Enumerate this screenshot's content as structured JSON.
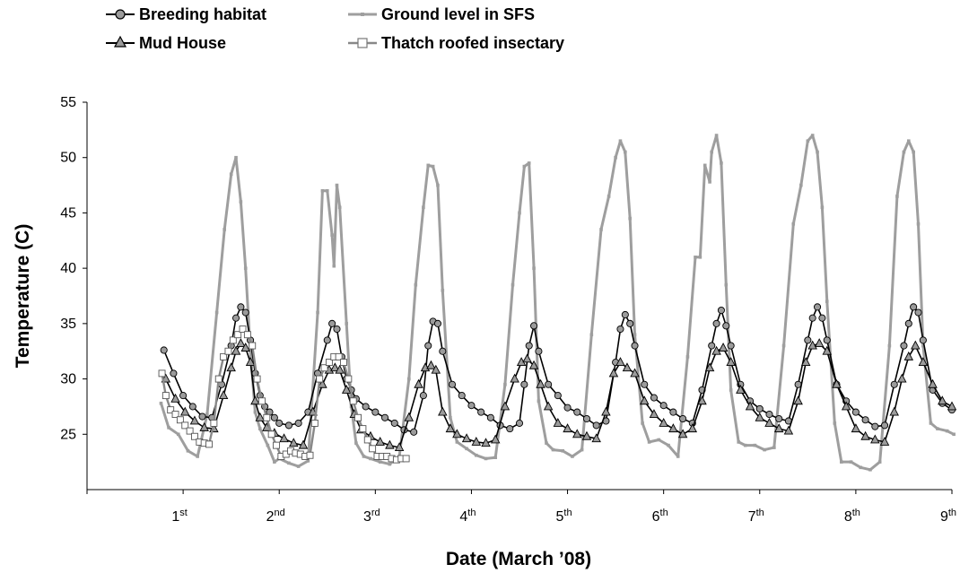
{
  "chart_data": {
    "type": "line",
    "title": "",
    "xlabel": "Date (March ’08)",
    "ylabel": "Temperature (C)",
    "ylim": [
      20,
      55
    ],
    "xlim": [
      0,
      9
    ],
    "yticks": [
      25,
      30,
      35,
      40,
      45,
      50,
      55
    ],
    "xticks": [
      {
        "x": 1,
        "base": "1",
        "sup": "st"
      },
      {
        "x": 2,
        "base": "2",
        "sup": "nd"
      },
      {
        "x": 3,
        "base": "3",
        "sup": "rd"
      },
      {
        "x": 4,
        "base": "4",
        "sup": "th"
      },
      {
        "x": 5,
        "base": "5",
        "sup": "th"
      },
      {
        "x": 6,
        "base": "6",
        "sup": "th"
      },
      {
        "x": 7,
        "base": "7",
        "sup": "th"
      },
      {
        "x": 8,
        "base": "8",
        "sup": "th"
      },
      {
        "x": 9,
        "base": "9",
        "sup": "th"
      }
    ],
    "grid": false,
    "legend_position": "top-left",
    "series": [
      {
        "name": "Ground level in SFS",
        "color": "#9e9e9e",
        "marker": "small-square",
        "x": [
          0.77,
          0.85,
          0.95,
          1.05,
          1.15,
          1.25,
          1.35,
          1.43,
          1.5,
          1.55,
          1.6,
          1.65,
          1.7,
          1.75,
          1.8,
          1.88,
          1.95,
          2.0,
          2.1,
          2.2,
          2.3,
          2.4,
          2.45,
          2.5,
          2.55,
          2.57,
          2.6,
          2.63,
          2.7,
          2.75,
          2.8,
          2.88,
          2.95,
          3.05,
          3.15,
          3.25,
          3.35,
          3.42,
          3.5,
          3.55,
          3.6,
          3.65,
          3.7,
          3.78,
          3.85,
          3.95,
          4.05,
          4.15,
          4.25,
          4.35,
          4.43,
          4.5,
          4.55,
          4.6,
          4.65,
          4.7,
          4.78,
          4.85,
          4.95,
          5.05,
          5.15,
          5.25,
          5.35,
          5.43,
          5.5,
          5.55,
          5.6,
          5.65,
          5.7,
          5.78,
          5.85,
          5.95,
          6.05,
          6.15,
          6.25,
          6.33,
          6.38,
          6.43,
          6.48,
          6.5,
          6.55,
          6.6,
          6.65,
          6.7,
          6.78,
          6.85,
          6.95,
          7.05,
          7.15,
          7.25,
          7.35,
          7.43,
          7.5,
          7.55,
          7.6,
          7.65,
          7.7,
          7.78,
          7.85,
          7.95,
          8.05,
          8.15,
          8.25,
          8.35,
          8.43,
          8.5,
          8.55,
          8.6,
          8.65,
          8.7,
          8.78,
          8.85,
          8.95,
          9.02
        ],
        "values": [
          27.8,
          25.6,
          25.0,
          23.5,
          23.0,
          26.8,
          36.0,
          43.5,
          48.5,
          50.0,
          46.0,
          40.0,
          32.5,
          27.0,
          25.5,
          24.0,
          22.5,
          22.8,
          22.4,
          22.1,
          22.6,
          36.0,
          47.0,
          47.0,
          43.0,
          40.2,
          47.5,
          45.5,
          35.0,
          27.5,
          24.2,
          23.0,
          22.8,
          22.5,
          22.3,
          23.0,
          30.0,
          38.5,
          45.5,
          49.3,
          49.2,
          47.5,
          38.0,
          26.5,
          24.3,
          23.7,
          23.1,
          22.8,
          22.9,
          29.5,
          38.5,
          45.0,
          49.2,
          49.5,
          40.0,
          28.0,
          24.2,
          23.6,
          23.5,
          23.0,
          23.6,
          34.0,
          43.5,
          46.5,
          50.0,
          51.5,
          50.5,
          44.5,
          34.0,
          26.0,
          24.3,
          24.5,
          24.0,
          23.0,
          32.0,
          41.0,
          41.0,
          49.3,
          47.8,
          50.5,
          52.0,
          49.5,
          38.5,
          29.0,
          24.3,
          24.0,
          24.0,
          23.6,
          23.8,
          33.0,
          44.0,
          47.5,
          51.5,
          52.0,
          50.5,
          45.5,
          37.0,
          26.0,
          22.5,
          22.5,
          22.0,
          21.8,
          22.5,
          33.0,
          46.5,
          50.5,
          51.5,
          50.5,
          44.0,
          33.0,
          26.0,
          25.5,
          25.3,
          25.0
        ]
      },
      {
        "name": "Breeding habitat",
        "color": "#000000",
        "marker": "circle",
        "x": [
          0.8,
          0.9,
          1.0,
          1.1,
          1.2,
          1.3,
          1.4,
          1.5,
          1.55,
          1.6,
          1.65,
          1.7,
          1.75,
          1.8,
          1.85,
          1.9,
          1.95,
          2.0,
          2.1,
          2.2,
          2.3,
          2.4,
          2.5,
          2.55,
          2.6,
          2.65,
          2.7,
          2.75,
          2.8,
          2.9,
          3.0,
          3.1,
          3.2,
          3.3,
          3.4,
          3.5,
          3.55,
          3.6,
          3.65,
          3.7,
          3.8,
          3.9,
          4.0,
          4.1,
          4.2,
          4.3,
          4.4,
          4.5,
          4.55,
          4.6,
          4.65,
          4.7,
          4.8,
          4.9,
          5.0,
          5.1,
          5.2,
          5.3,
          5.4,
          5.5,
          5.55,
          5.6,
          5.65,
          5.7,
          5.8,
          5.9,
          6.0,
          6.1,
          6.2,
          6.3,
          6.4,
          6.5,
          6.55,
          6.6,
          6.65,
          6.7,
          6.8,
          6.9,
          7.0,
          7.1,
          7.2,
          7.3,
          7.4,
          7.5,
          7.55,
          7.6,
          7.65,
          7.7,
          7.8,
          7.9,
          8.0,
          8.1,
          8.2,
          8.3,
          8.4,
          8.5,
          8.55,
          8.6,
          8.65,
          8.7,
          8.8,
          8.9,
          9.0
        ],
        "values": [
          32.6,
          30.5,
          28.5,
          27.5,
          26.6,
          26.5,
          29.5,
          33.0,
          35.5,
          36.5,
          36.0,
          33.5,
          30.5,
          28.5,
          27.5,
          27.0,
          26.5,
          26.0,
          25.8,
          26.0,
          27.0,
          30.5,
          33.5,
          35.0,
          34.5,
          32.0,
          30.0,
          29.0,
          28.2,
          27.5,
          27.0,
          26.5,
          26.0,
          25.4,
          25.2,
          28.5,
          33.0,
          35.2,
          35.0,
          32.5,
          29.5,
          28.5,
          27.6,
          27.0,
          26.5,
          25.8,
          25.5,
          26.0,
          29.5,
          33.0,
          34.8,
          32.5,
          29.5,
          28.5,
          27.4,
          27.0,
          26.4,
          25.8,
          26.2,
          31.5,
          34.5,
          35.8,
          35.0,
          33.0,
          29.5,
          28.3,
          27.6,
          27.0,
          26.4,
          26.0,
          29.0,
          33.0,
          35.0,
          36.2,
          34.8,
          33.0,
          29.5,
          28.0,
          27.3,
          26.8,
          26.4,
          26.2,
          29.5,
          33.5,
          35.5,
          36.5,
          35.5,
          33.5,
          29.5,
          28.0,
          27.0,
          26.3,
          25.7,
          25.8,
          29.5,
          33.0,
          35.0,
          36.5,
          36.0,
          33.5,
          29.0,
          27.8,
          27.2
        ]
      },
      {
        "name": "Mud House",
        "color": "#000000",
        "marker": "triangle",
        "x": [
          0.82,
          0.92,
          1.02,
          1.12,
          1.22,
          1.32,
          1.42,
          1.5,
          1.55,
          1.6,
          1.65,
          1.7,
          1.75,
          1.8,
          1.87,
          1.95,
          2.05,
          2.15,
          2.25,
          2.35,
          2.45,
          2.52,
          2.58,
          2.63,
          2.7,
          2.78,
          2.85,
          2.95,
          3.05,
          3.15,
          3.25,
          3.35,
          3.45,
          3.52,
          3.58,
          3.63,
          3.7,
          3.78,
          3.85,
          3.95,
          4.05,
          4.15,
          4.25,
          4.35,
          4.45,
          4.52,
          4.58,
          4.65,
          4.72,
          4.8,
          4.9,
          5.0,
          5.1,
          5.2,
          5.3,
          5.4,
          5.48,
          5.55,
          5.62,
          5.7,
          5.8,
          5.9,
          6.0,
          6.1,
          6.2,
          6.3,
          6.4,
          6.48,
          6.55,
          6.62,
          6.7,
          6.8,
          6.9,
          7.0,
          7.1,
          7.2,
          7.3,
          7.4,
          7.48,
          7.55,
          7.62,
          7.7,
          7.8,
          7.9,
          8.0,
          8.1,
          8.2,
          8.3,
          8.4,
          8.48,
          8.55,
          8.62,
          8.7,
          8.8,
          8.9,
          9.0
        ],
        "values": [
          30.0,
          28.2,
          27.0,
          26.2,
          25.6,
          25.5,
          28.5,
          31.0,
          32.5,
          33.2,
          32.8,
          31.5,
          28.0,
          26.5,
          25.6,
          25.1,
          24.6,
          24.2,
          24.0,
          27.0,
          29.5,
          30.8,
          31.0,
          30.8,
          29.0,
          26.8,
          25.4,
          24.8,
          24.3,
          24.0,
          23.8,
          26.5,
          29.5,
          31.0,
          31.2,
          30.8,
          27.0,
          25.5,
          25.0,
          24.6,
          24.3,
          24.2,
          24.5,
          27.5,
          30.0,
          31.5,
          31.8,
          31.2,
          29.5,
          27.5,
          26.0,
          25.5,
          25.0,
          24.8,
          24.6,
          27.0,
          30.5,
          31.5,
          31.0,
          30.5,
          28.0,
          26.8,
          26.0,
          25.5,
          25.0,
          25.5,
          28.0,
          31.0,
          32.5,
          32.8,
          31.5,
          29.0,
          27.5,
          26.5,
          26.0,
          25.5,
          25.3,
          28.0,
          31.5,
          33.0,
          33.2,
          32.5,
          29.5,
          27.5,
          25.5,
          24.8,
          24.5,
          24.3,
          27.0,
          30.0,
          32.0,
          33.0,
          31.5,
          29.5,
          28.0,
          27.5
        ]
      },
      {
        "name": "Thatch roofed insectary",
        "color": "#888888",
        "marker": "open-square",
        "x": [
          0.78,
          0.82,
          0.87,
          0.92,
          0.97,
          1.02,
          1.07,
          1.12,
          1.17,
          1.22,
          1.27,
          1.32,
          1.37,
          1.42,
          1.47,
          1.52,
          1.57,
          1.62,
          1.67,
          1.72,
          1.77,
          1.82,
          1.87,
          1.92,
          1.97,
          2.02,
          2.07,
          2.12,
          2.17,
          2.22,
          2.27,
          2.32,
          2.37,
          2.42,
          2.47,
          2.52,
          2.57,
          2.62,
          2.67,
          2.72,
          2.77,
          2.82,
          2.87,
          2.92,
          2.97,
          3.02,
          3.07,
          3.12,
          3.17,
          3.22,
          3.27,
          3.32
        ],
        "values": [
          30.5,
          28.5,
          27.2,
          26.8,
          26.3,
          25.8,
          25.3,
          24.8,
          24.3,
          24.2,
          24.1,
          26.0,
          30.0,
          32.0,
          32.5,
          33.5,
          34.0,
          34.5,
          34.0,
          33.0,
          30.0,
          28.0,
          26.5,
          25.0,
          24.0,
          23.0,
          23.2,
          23.5,
          23.3,
          23.2,
          23.0,
          23.1,
          26.0,
          30.0,
          31.0,
          31.5,
          32.0,
          32.0,
          31.5,
          30.0,
          28.0,
          26.5,
          25.5,
          24.5,
          23.7,
          23.0,
          23.0,
          23.0,
          22.8,
          22.7,
          22.8,
          22.8
        ]
      }
    ]
  },
  "legend": {
    "items": [
      {
        "label": "Breeding habitat"
      },
      {
        "label": "Mud House"
      },
      {
        "label": "Ground level in SFS"
      },
      {
        "label": "Thatch roofed insectary"
      }
    ]
  }
}
